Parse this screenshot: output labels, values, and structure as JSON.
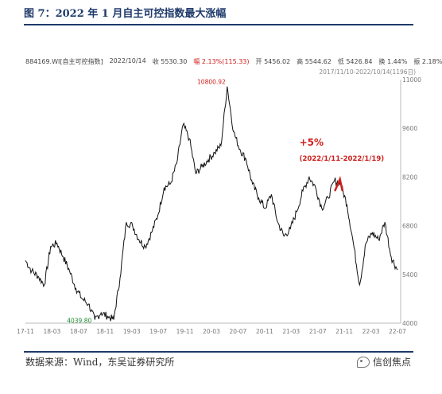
{
  "figure": {
    "title": "图 7：2022 年 1 月自主可控指数最大涨幅",
    "source": "数据来源：Wind，东吴证券研究所",
    "brand": "信创焦点"
  },
  "info_bar": {
    "code": "884169.WI[自主可控指数]",
    "date": "2022/10/14",
    "close": "收 5530.30",
    "change": "幅 2.13%(115.33)",
    "open": "开 5456.02",
    "high": "高 5544.62",
    "low": "低 5426.84",
    "turnover": "换 1.44%",
    "amplitude": "振 2.18%",
    "range": "2017/11/10-2022/10/14(1196日)"
  },
  "chart_data": {
    "type": "line",
    "title": "",
    "xlabel": "",
    "ylabel": "",
    "ylim": [
      4000,
      11000
    ],
    "y_ticks": [
      4000,
      5400,
      6800,
      8200,
      9600,
      11000
    ],
    "x_ticks": [
      "17-11",
      "18-03",
      "18-07",
      "18-11",
      "19-03",
      "19-07",
      "19-11",
      "20-03",
      "20-07",
      "20-11",
      "21-03",
      "21-07",
      "21-11",
      "22-03",
      "22-07"
    ],
    "series": [
      {
        "x": [
          "2017-11",
          "2017-12",
          "2018-01",
          "2018-02",
          "2018-03",
          "2018-04",
          "2018-05",
          "2018-06",
          "2018-07",
          "2018-08",
          "2018-09",
          "2018-10",
          "2018-11",
          "2018-12",
          "2019-01",
          "2019-02",
          "2019-03",
          "2019-04",
          "2019-05",
          "2019-06",
          "2019-07",
          "2019-08",
          "2019-09",
          "2019-10",
          "2019-11",
          "2019-12",
          "2020-01",
          "2020-02",
          "2020-03",
          "2020-04",
          "2020-05",
          "2020-06",
          "2020-07",
          "2020-08",
          "2020-09",
          "2020-10",
          "2020-11",
          "2020-12",
          "2021-01",
          "2021-02",
          "2021-03",
          "2021-04",
          "2021-05",
          "2021-06",
          "2021-07",
          "2021-08",
          "2021-09",
          "2021-10",
          "2021-11",
          "2021-12",
          "2022-01",
          "2022-02",
          "2022-03",
          "2022-04",
          "2022-05",
          "2022-06",
          "2022-07",
          "2022-08",
          "2022-09",
          "2022-10"
        ],
        "values": [
          5800,
          5500,
          5350,
          5100,
          6200,
          6300,
          5900,
          5500,
          5000,
          4700,
          4550,
          4100,
          4300,
          4200,
          4100,
          5300,
          6900,
          6800,
          6400,
          6200,
          6600,
          7100,
          7900,
          8000,
          8600,
          9700,
          9300,
          8300,
          8500,
          8700,
          8900,
          9100,
          10800,
          9500,
          9000,
          8700,
          8000,
          7600,
          7300,
          7700,
          6900,
          6500,
          6700,
          7200,
          7800,
          8200,
          7900,
          7300,
          7600,
          8100,
          8000,
          7400,
          6300,
          5100,
          6300,
          6600,
          6400,
          6900,
          5900,
          5530
        ]
      }
    ],
    "max_label": "10800.92",
    "min_label": "4039.80",
    "annotation": {
      "text": "+5%",
      "period": "(2022/1/11-2022/1/19)"
    },
    "colors": {
      "line": "#111111",
      "annotation": "#d0201d",
      "max": "#d0201d",
      "min": "#1a8a2e"
    },
    "grid": false
  }
}
